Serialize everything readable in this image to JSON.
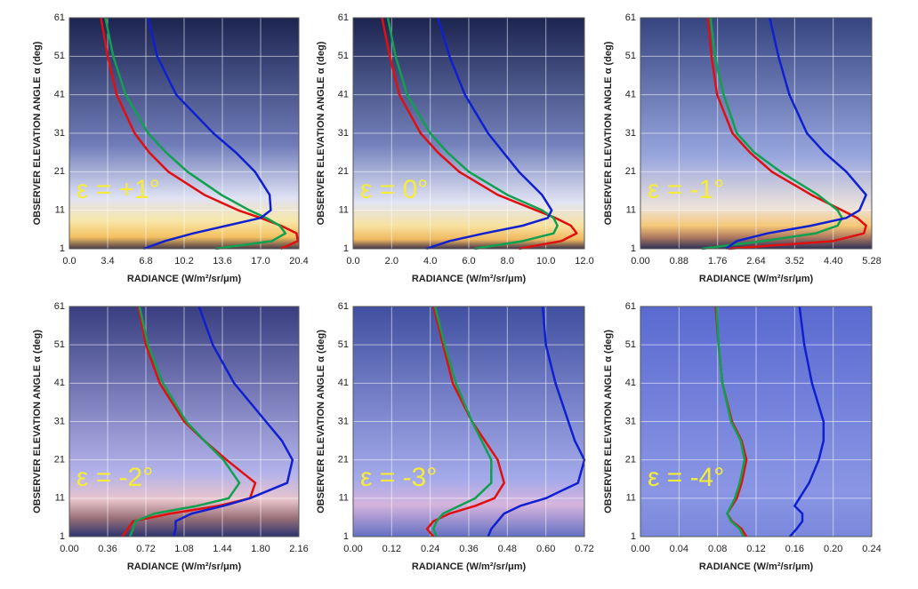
{
  "chart_data": [
    {
      "type": "line",
      "annotation": "ε = +1°",
      "xlabel": "RADIANCE (W/m²/sr/μm)",
      "ylabel": "OBSERVER ELEVATION ANGLE α (deg)",
      "y": [
        1,
        3,
        5,
        7,
        9,
        11,
        15,
        21,
        26,
        31,
        41,
        51,
        61
      ],
      "series": [
        {
          "color": "#e01010",
          "values": [
            18.8,
            20.3,
            20.2,
            18.8,
            17,
            15,
            12,
            8.8,
            7.1,
            5.8,
            4.2,
            3.4,
            2.8
          ]
        },
        {
          "color": "#10a050",
          "values": [
            13,
            18,
            19.2,
            18.7,
            17.5,
            16,
            13.5,
            10.5,
            8.6,
            7,
            5,
            3.9,
            3.2
          ]
        },
        {
          "color": "#1020d0",
          "values": [
            6.6,
            8.5,
            11,
            14,
            17,
            17.9,
            17.8,
            16.5,
            14.8,
            12.8,
            9.5,
            7.8,
            7
          ]
        }
      ],
      "xlim": [
        0,
        20.4
      ],
      "xticks": [
        {
          "value": 0,
          "label": "0.0"
        },
        3.4,
        6.8,
        10.2,
        13.6,
        {
          "value": 17,
          "label": "17.0"
        },
        20.4
      ],
      "ylim": [
        1,
        61
      ],
      "yticks": [
        1,
        11,
        21,
        31,
        41,
        51,
        61
      ],
      "grid": true
    },
    {
      "type": "line",
      "annotation": "ε = 0°",
      "xlabel": "RADIANCE (W/m²/sr/μm)",
      "ylabel": "OBSERVER ELEVATION ANGLE α (deg)",
      "y": [
        1,
        3,
        5,
        7,
        9,
        11,
        15,
        21,
        26,
        31,
        41,
        51,
        61
      ],
      "series": [
        {
          "color": "#e01010",
          "values": [
            8.6,
            10.8,
            11.6,
            11.3,
            10.5,
            9.5,
            7.5,
            5.5,
            4.4,
            3.5,
            2.4,
            1.9,
            1.5
          ]
        },
        {
          "color": "#10a050",
          "values": [
            6.3,
            8.8,
            10.4,
            10.6,
            10.4,
            9.8,
            8,
            6,
            4.9,
            4,
            2.8,
            2.2,
            1.8
          ]
        },
        {
          "color": "#1020d0",
          "values": [
            3.8,
            5,
            6.8,
            8.8,
            10.1,
            10.3,
            9.8,
            8.6,
            7.8,
            7,
            5.8,
            5,
            4.4
          ]
        }
      ],
      "xlim": [
        0,
        12
      ],
      "xticks": [
        {
          "value": 0,
          "label": "0.0"
        },
        {
          "value": 2,
          "label": "2.0"
        },
        {
          "value": 4,
          "label": "4.0"
        },
        {
          "value": 6,
          "label": "6.0"
        },
        {
          "value": 8,
          "label": "8.0"
        },
        {
          "value": 10,
          "label": "10.0"
        },
        {
          "value": 12,
          "label": "12.0"
        }
      ],
      "ylim": [
        1,
        61
      ],
      "yticks": [
        1,
        11,
        21,
        31,
        41,
        51,
        61
      ],
      "grid": true
    },
    {
      "type": "line",
      "annotation": "ε = -1°",
      "xlabel": "RADIANCE (W/m²/sr/μm)",
      "ylabel": "OBSERVER ELEVATION ANGLE α (deg)",
      "y": [
        1,
        3,
        5,
        7,
        9,
        11,
        15,
        21,
        26,
        31,
        41,
        51,
        61
      ],
      "series": [
        {
          "color": "#e01010",
          "values": [
            2,
            4.4,
            5.1,
            5.15,
            4.95,
            4.6,
            3.9,
            3,
            2.5,
            2.1,
            1.75,
            1.62,
            1.54
          ]
        },
        {
          "color": "#10a050",
          "values": [
            1.4,
            2.8,
            4,
            4.5,
            4.6,
            4.5,
            4.05,
            3.2,
            2.6,
            2.2,
            1.9,
            1.7,
            1.6
          ]
        },
        {
          "color": "#1020d0",
          "values": [
            1.95,
            2.2,
            2.9,
            3.9,
            4.7,
            5,
            5.15,
            4.7,
            4.2,
            3.8,
            3.4,
            3.15,
            2.95
          ]
        }
      ],
      "xlim": [
        0,
        5.28
      ],
      "xticks": [
        {
          "value": 0,
          "label": "0.00"
        },
        0.88,
        1.76,
        2.64,
        3.52,
        {
          "value": 4.4,
          "label": "4.40"
        },
        5.28
      ],
      "ylim": [
        1,
        61
      ],
      "yticks": [
        1,
        11,
        21,
        31,
        41,
        51,
        61
      ],
      "grid": true
    },
    {
      "type": "line",
      "annotation": "ε = -2°",
      "xlabel": "RADIANCE (W/m²/sr/μm)",
      "ylabel": "OBSERVER ELEVATION ANGLE α (deg)",
      "y": [
        1,
        3,
        5,
        7,
        9,
        11,
        15,
        21,
        26,
        31,
        41,
        51,
        61
      ],
      "series": [
        {
          "color": "#e01010",
          "values": [
            0.5,
            0.55,
            0.6,
            0.95,
            1.4,
            1.7,
            1.75,
            1.48,
            1.27,
            1.08,
            0.85,
            0.72,
            0.65
          ]
        },
        {
          "color": "#10a050",
          "values": [
            0.57,
            0.6,
            0.62,
            0.8,
            1.2,
            1.5,
            1.6,
            1.45,
            1.27,
            1.1,
            0.88,
            0.74,
            0.66
          ]
        },
        {
          "color": "#1020d0",
          "values": [
            0.98,
            1,
            1,
            1.15,
            1.45,
            1.7,
            2.05,
            2.1,
            2,
            1.85,
            1.55,
            1.35,
            1.22
          ]
        }
      ],
      "xlim": [
        0,
        2.16
      ],
      "xticks": [
        {
          "value": 0,
          "label": "0.00"
        },
        0.36,
        0.72,
        1.08,
        1.44,
        {
          "value": 1.8,
          "label": "1.80"
        },
        2.16
      ],
      "ylim": [
        1,
        61
      ],
      "yticks": [
        1,
        11,
        21,
        31,
        41,
        51,
        61
      ],
      "grid": true
    },
    {
      "type": "line",
      "annotation": "ε = -3°",
      "xlabel": "RADIANCE (W/m²/sr/μm)",
      "ylabel": "OBSERVER ELEVATION ANGLE α (deg)",
      "y": [
        1,
        3,
        5,
        7,
        9,
        11,
        15,
        21,
        26,
        31,
        41,
        51,
        61
      ],
      "series": [
        {
          "color": "#e01010",
          "values": [
            0.25,
            0.23,
            0.25,
            0.3,
            0.38,
            0.44,
            0.47,
            0.45,
            0.41,
            0.37,
            0.31,
            0.28,
            0.25
          ]
        },
        {
          "color": "#10a050",
          "values": [
            0.26,
            0.25,
            0.26,
            0.28,
            0.33,
            0.38,
            0.43,
            0.43,
            0.4,
            0.37,
            0.32,
            0.285,
            0.255
          ]
        },
        {
          "color": "#1020d0",
          "values": [
            0.42,
            0.43,
            0.45,
            0.47,
            0.52,
            0.6,
            0.7,
            0.72,
            0.69,
            0.67,
            0.63,
            0.6,
            0.59
          ]
        }
      ],
      "xlim": [
        0,
        0.72
      ],
      "xticks": [
        {
          "value": 0,
          "label": "0.00"
        },
        0.12,
        0.24,
        0.36,
        0.48,
        {
          "value": 0.6,
          "label": "0.60"
        },
        0.72
      ],
      "ylim": [
        1,
        61
      ],
      "yticks": [
        1,
        11,
        21,
        31,
        41,
        51,
        61
      ],
      "grid": true
    },
    {
      "type": "line",
      "annotation": "ε = -4°",
      "xlabel": "RADIANCE (W/m²/sr/μm)",
      "ylabel": "OBSERVER ELEVATION ANGLE α (deg)",
      "y": [
        1,
        3,
        5,
        7,
        9,
        11,
        15,
        21,
        26,
        31,
        41,
        51,
        61
      ],
      "series": [
        {
          "color": "#e01010",
          "values": [
            0.11,
            0.105,
            0.095,
            0.09,
            0.095,
            0.1,
            0.105,
            0.11,
            0.105,
            0.095,
            0.085,
            0.081,
            0.078
          ]
        },
        {
          "color": "#10a050",
          "values": [
            0.107,
            0.103,
            0.094,
            0.09,
            0.094,
            0.098,
            0.103,
            0.108,
            0.104,
            0.094,
            0.085,
            0.081,
            0.079
          ]
        },
        {
          "color": "#1020d0",
          "values": [
            0.155,
            0.162,
            0.168,
            0.168,
            0.16,
            0.165,
            0.175,
            0.185,
            0.19,
            0.19,
            0.178,
            0.17,
            0.165
          ]
        }
      ],
      "xlim": [
        0,
        0.24
      ],
      "xticks": [
        {
          "value": 0,
          "label": "0.00"
        },
        0.04,
        0.08,
        0.12,
        0.16,
        {
          "value": 0.2,
          "label": "0.20"
        },
        0.24
      ],
      "ylim": [
        1,
        61
      ],
      "yticks": [
        1,
        11,
        21,
        31,
        41,
        51,
        61
      ],
      "grid": true
    }
  ]
}
